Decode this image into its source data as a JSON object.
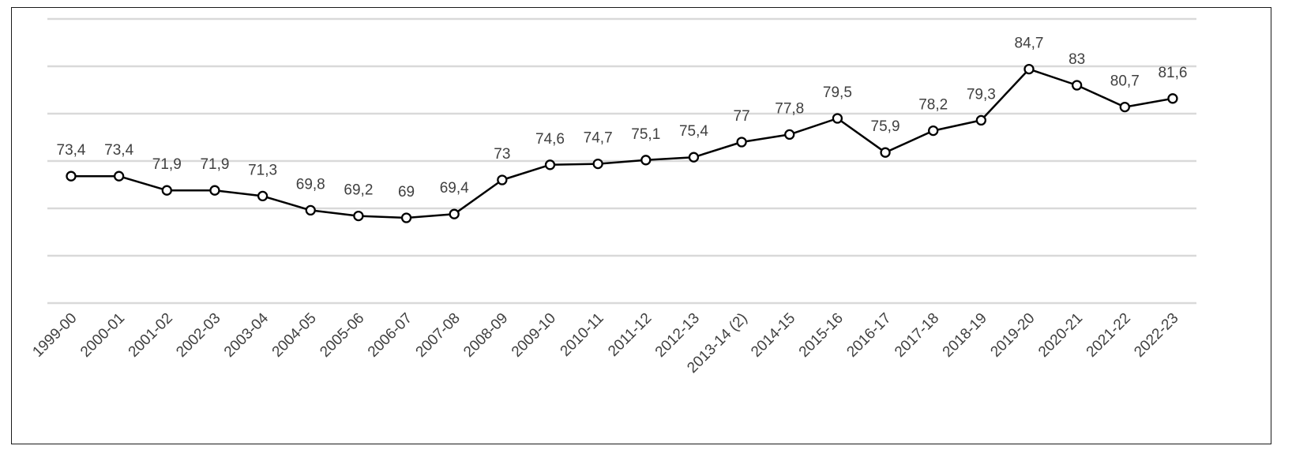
{
  "chart_data": {
    "type": "line",
    "categories": [
      "1999-00",
      "2000-01",
      "2001-02",
      "2002-03",
      "2003-04",
      "2004-05",
      "2005-06",
      "2006-07",
      "2007-08",
      "2008-09",
      "2009-10",
      "2010-11",
      "2011-12",
      "2012-13",
      "2013-14 (2)",
      "2014-15",
      "2015-16",
      "2016-17",
      "2017-18",
      "2018-19",
      "2019-20",
      "2020-21",
      "2021-22",
      "2022-23"
    ],
    "series": [
      {
        "values": [
          73.4,
          73.4,
          71.9,
          71.9,
          71.3,
          69.8,
          69.2,
          69,
          69.4,
          73,
          74.6,
          74.7,
          75.1,
          75.4,
          77,
          77.8,
          79.5,
          75.9,
          78.2,
          79.3,
          84.7,
          83,
          80.7,
          81.6
        ],
        "data_labels": [
          "73,4",
          "73,4",
          "71,9",
          "71,9",
          "71,3",
          "69,8",
          "69,2",
          "69",
          "69,4",
          "73",
          "74,6",
          "74,7",
          "75,1",
          "75,4",
          "77",
          "77,8",
          "79,5",
          "75,9",
          "78,2",
          "79,3",
          "84,7",
          "83",
          "80,7",
          "81,6"
        ],
        "color": "#000000",
        "marker": "open-circle"
      }
    ],
    "ylim": [
      60,
      90
    ],
    "grid": true,
    "y_axis_labels_visible": false,
    "legend": "none",
    "gridline_color": "#d9d9d9",
    "text_color": "#404040"
  }
}
